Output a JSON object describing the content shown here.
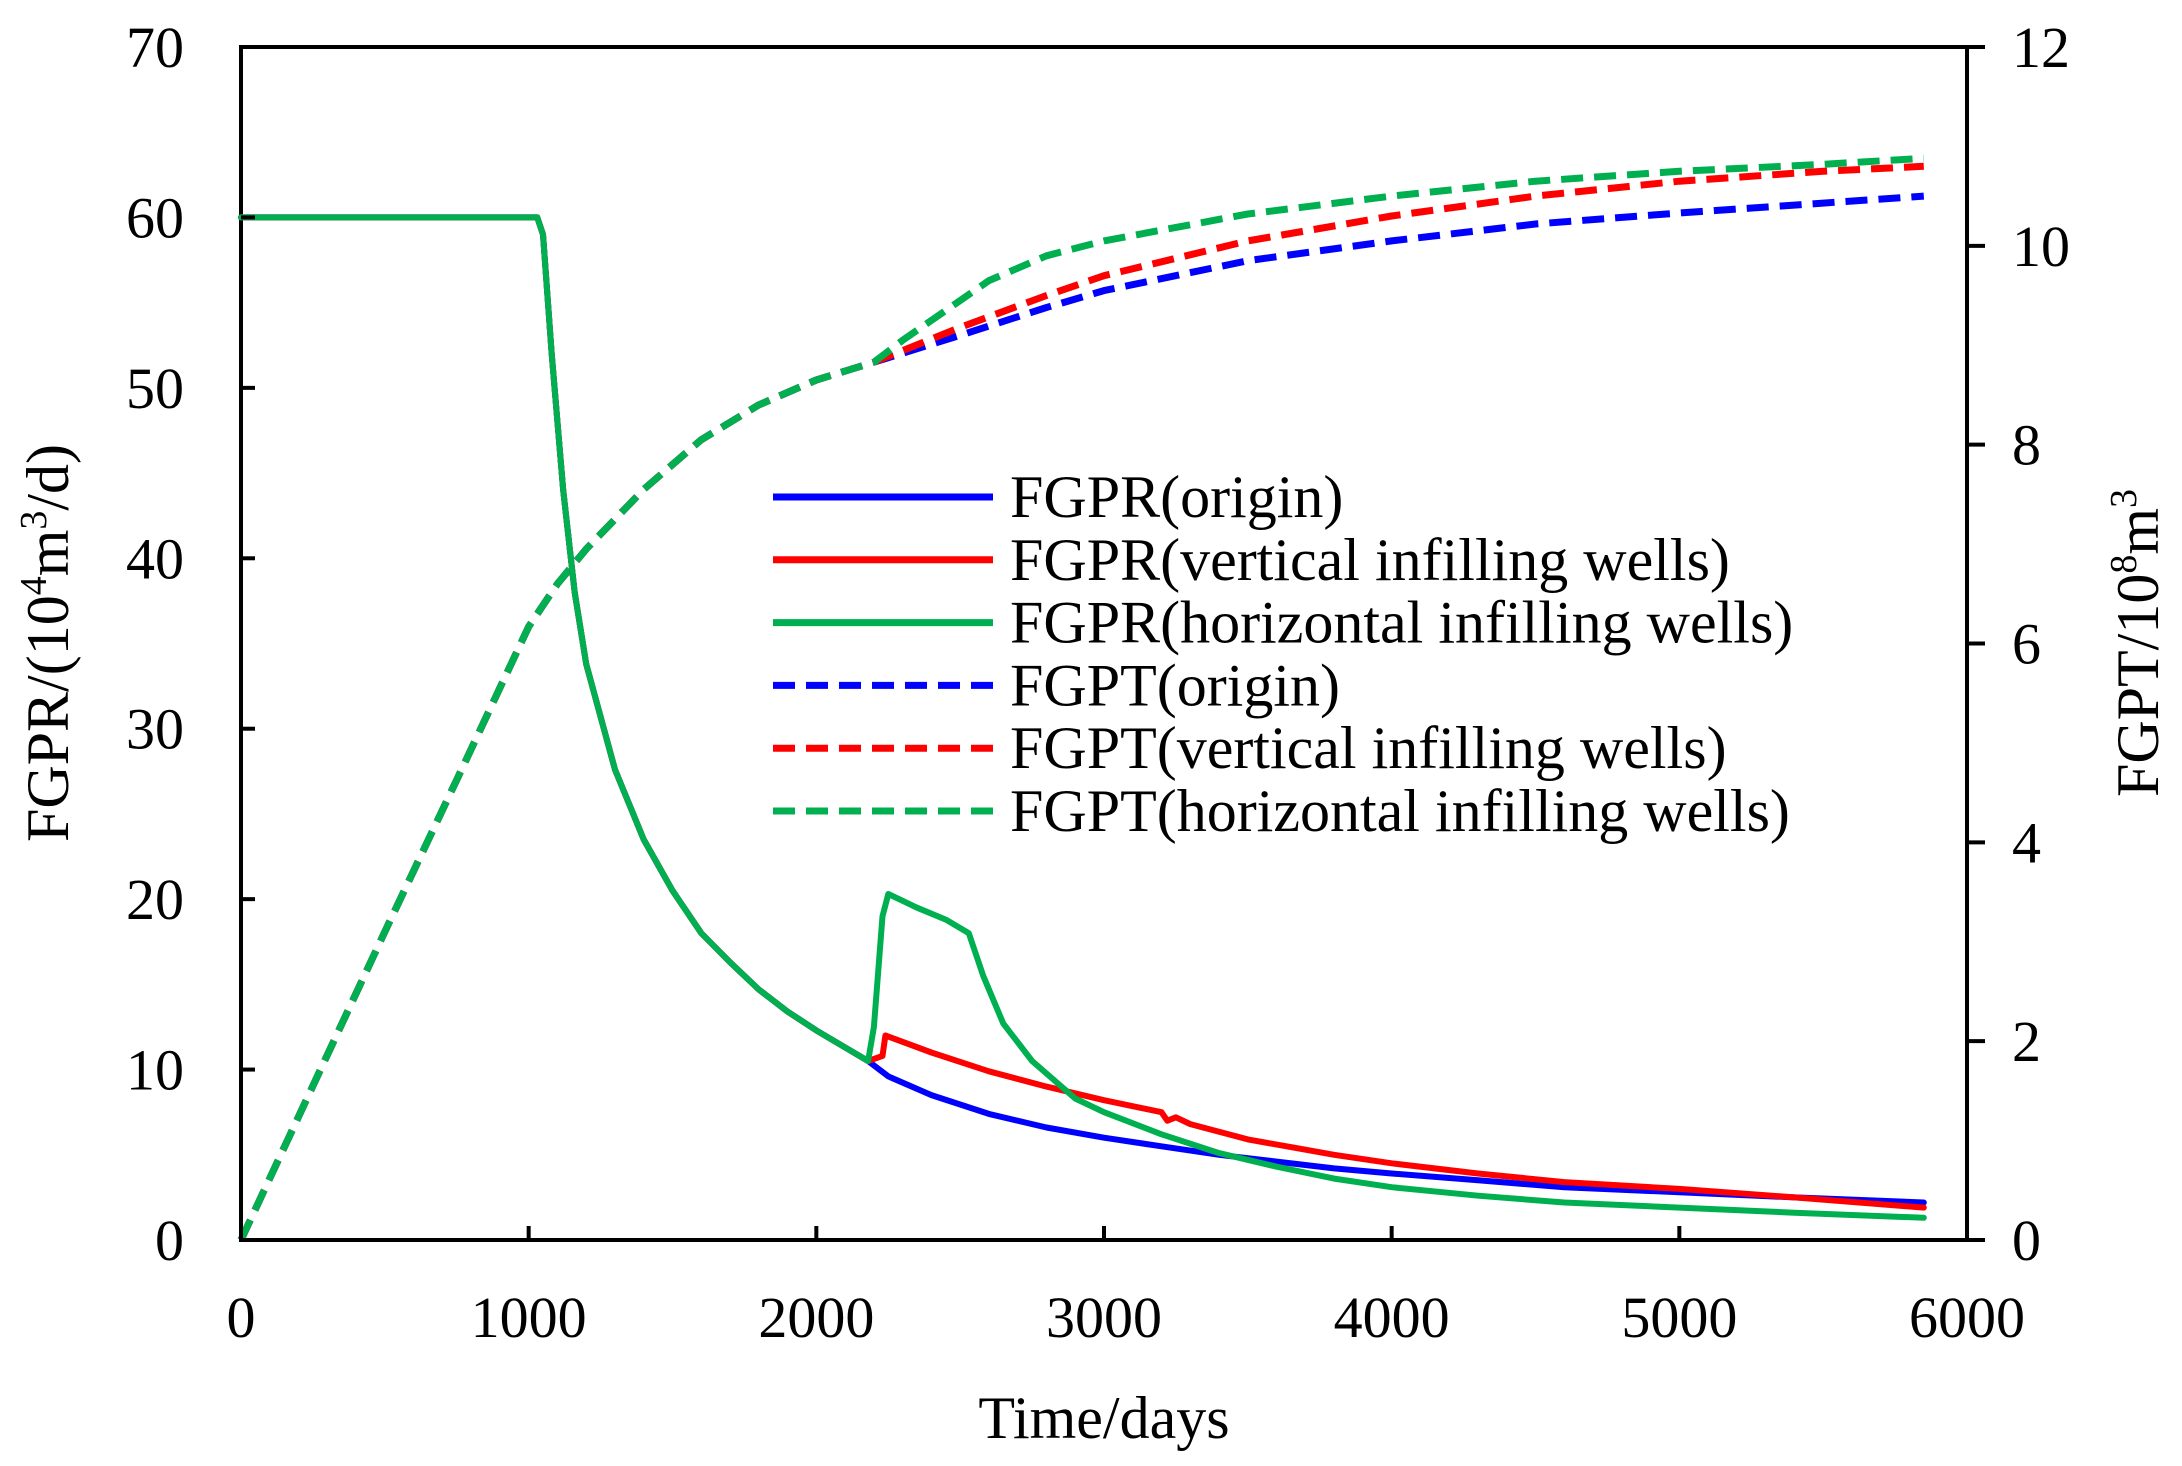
{
  "chart_data": {
    "type": "line",
    "title": "",
    "xlabel": "Time/days",
    "ylabel_left_parts": [
      "FGPR/(10",
      "4",
      "m",
      "3",
      "/d)"
    ],
    "ylabel_right_parts": [
      "FGPT/10",
      "8",
      "m",
      "3"
    ],
    "xlim": [
      0,
      6000
    ],
    "ylim_left": [
      0,
      70
    ],
    "ylim_right": [
      0,
      12
    ],
    "xticks": [
      "0",
      "1000",
      "2000",
      "3000",
      "4000",
      "5000",
      "6000"
    ],
    "yticks_left": [
      "0",
      "10",
      "20",
      "30",
      "40",
      "50",
      "60",
      "70"
    ],
    "yticks_right": [
      "0",
      "2",
      "4",
      "6",
      "8",
      "10",
      "12"
    ],
    "grid": false,
    "legend_position": "center-right",
    "series": [
      {
        "name": "FGPR(origin)",
        "axis": "left",
        "color": "#0000ff",
        "dashed": false,
        "points": [
          [
            0,
            60
          ],
          [
            1030,
            60
          ],
          [
            1050,
            59
          ],
          [
            1080,
            52
          ],
          [
            1120,
            44
          ],
          [
            1160,
            38
          ],
          [
            1200,
            33.8
          ],
          [
            1300,
            27.6
          ],
          [
            1400,
            23.5
          ],
          [
            1500,
            20.5
          ],
          [
            1600,
            18
          ],
          [
            1700,
            16.3
          ],
          [
            1800,
            14.7
          ],
          [
            1900,
            13.4
          ],
          [
            2000,
            12.3
          ],
          [
            2100,
            11.3
          ],
          [
            2180,
            10.5
          ],
          [
            2250,
            9.6
          ],
          [
            2400,
            8.5
          ],
          [
            2600,
            7.4
          ],
          [
            2800,
            6.6
          ],
          [
            3000,
            6
          ],
          [
            3200,
            5.5
          ],
          [
            3400,
            5
          ],
          [
            3600,
            4.6
          ],
          [
            3800,
            4.2
          ],
          [
            4000,
            3.9
          ],
          [
            4300,
            3.5
          ],
          [
            4600,
            3.1
          ],
          [
            5000,
            2.8
          ],
          [
            5400,
            2.5
          ],
          [
            5850,
            2.2
          ]
        ]
      },
      {
        "name": "FGPR(vertical infilling wells)",
        "axis": "left",
        "color": "#ff0000",
        "dashed": false,
        "points": [
          [
            0,
            60
          ],
          [
            1030,
            60
          ],
          [
            1050,
            59
          ],
          [
            1080,
            52
          ],
          [
            1120,
            44
          ],
          [
            1160,
            38
          ],
          [
            1200,
            33.8
          ],
          [
            1300,
            27.6
          ],
          [
            1400,
            23.5
          ],
          [
            1500,
            20.5
          ],
          [
            1600,
            18
          ],
          [
            1700,
            16.3
          ],
          [
            1800,
            14.7
          ],
          [
            1900,
            13.4
          ],
          [
            2000,
            12.3
          ],
          [
            2100,
            11.3
          ],
          [
            2180,
            10.5
          ],
          [
            2230,
            10.8
          ],
          [
            2240,
            12
          ],
          [
            2400,
            11
          ],
          [
            2600,
            9.9
          ],
          [
            2800,
            9
          ],
          [
            3000,
            8.2
          ],
          [
            3200,
            7.5
          ],
          [
            3220,
            7
          ],
          [
            3250,
            7.2
          ],
          [
            3300,
            6.8
          ],
          [
            3500,
            5.9
          ],
          [
            3800,
            5
          ],
          [
            4000,
            4.5
          ],
          [
            4300,
            3.9
          ],
          [
            4600,
            3.4
          ],
          [
            5000,
            3
          ],
          [
            5400,
            2.5
          ],
          [
            5850,
            1.9
          ]
        ]
      },
      {
        "name": "FGPR(horizontal infilling wells)",
        "axis": "left",
        "color": "#00b050",
        "dashed": false,
        "points": [
          [
            0,
            60
          ],
          [
            1030,
            60
          ],
          [
            1050,
            59
          ],
          [
            1080,
            52
          ],
          [
            1120,
            44
          ],
          [
            1160,
            38
          ],
          [
            1200,
            33.8
          ],
          [
            1300,
            27.6
          ],
          [
            1400,
            23.5
          ],
          [
            1500,
            20.5
          ],
          [
            1600,
            18
          ],
          [
            1700,
            16.3
          ],
          [
            1800,
            14.7
          ],
          [
            1900,
            13.4
          ],
          [
            2000,
            12.3
          ],
          [
            2100,
            11.3
          ],
          [
            2180,
            10.5
          ],
          [
            2200,
            12.5
          ],
          [
            2230,
            19
          ],
          [
            2250,
            20.3
          ],
          [
            2350,
            19.5
          ],
          [
            2450,
            18.8
          ],
          [
            2530,
            18
          ],
          [
            2580,
            15.5
          ],
          [
            2650,
            12.7
          ],
          [
            2750,
            10.5
          ],
          [
            2900,
            8.3
          ],
          [
            3000,
            7.5
          ],
          [
            3200,
            6.2
          ],
          [
            3400,
            5.1
          ],
          [
            3600,
            4.3
          ],
          [
            3800,
            3.6
          ],
          [
            4000,
            3.1
          ],
          [
            4300,
            2.6
          ],
          [
            4600,
            2.2
          ],
          [
            5000,
            1.9
          ],
          [
            5400,
            1.6
          ],
          [
            5850,
            1.3
          ]
        ]
      },
      {
        "name": "FGPT(origin)",
        "axis": "right",
        "color": "#0000ff",
        "dashed": true,
        "points": [
          [
            0,
            0
          ],
          [
            250,
            1.55
          ],
          [
            500,
            3.1
          ],
          [
            750,
            4.63
          ],
          [
            1000,
            6.17
          ],
          [
            1100,
            6.6
          ],
          [
            1200,
            6.95
          ],
          [
            1400,
            7.55
          ],
          [
            1600,
            8.05
          ],
          [
            1800,
            8.4
          ],
          [
            2000,
            8.65
          ],
          [
            2200,
            8.83
          ],
          [
            2500,
            9.1
          ],
          [
            2800,
            9.38
          ],
          [
            3000,
            9.55
          ],
          [
            3500,
            9.85
          ],
          [
            4000,
            10.05
          ],
          [
            4500,
            10.22
          ],
          [
            5000,
            10.33
          ],
          [
            5500,
            10.43
          ],
          [
            5850,
            10.5
          ]
        ]
      },
      {
        "name": "FGPT(vertical infilling wells)",
        "axis": "right",
        "color": "#ff0000",
        "dashed": true,
        "points": [
          [
            0,
            0
          ],
          [
            250,
            1.55
          ],
          [
            500,
            3.1
          ],
          [
            750,
            4.63
          ],
          [
            1000,
            6.17
          ],
          [
            1100,
            6.6
          ],
          [
            1200,
            6.95
          ],
          [
            1400,
            7.55
          ],
          [
            1600,
            8.05
          ],
          [
            1800,
            8.4
          ],
          [
            2000,
            8.65
          ],
          [
            2200,
            8.83
          ],
          [
            2500,
            9.18
          ],
          [
            2800,
            9.5
          ],
          [
            3000,
            9.7
          ],
          [
            3500,
            10.05
          ],
          [
            4000,
            10.3
          ],
          [
            4500,
            10.5
          ],
          [
            5000,
            10.65
          ],
          [
            5500,
            10.75
          ],
          [
            5850,
            10.8
          ]
        ]
      },
      {
        "name": "FGPT(horizontal infilling wells)",
        "axis": "right",
        "color": "#00b050",
        "dashed": true,
        "points": [
          [
            0,
            0
          ],
          [
            250,
            1.55
          ],
          [
            500,
            3.1
          ],
          [
            750,
            4.63
          ],
          [
            1000,
            6.17
          ],
          [
            1100,
            6.6
          ],
          [
            1200,
            6.95
          ],
          [
            1400,
            7.55
          ],
          [
            1600,
            8.05
          ],
          [
            1800,
            8.4
          ],
          [
            2000,
            8.65
          ],
          [
            2200,
            8.83
          ],
          [
            2300,
            9.05
          ],
          [
            2450,
            9.35
          ],
          [
            2600,
            9.65
          ],
          [
            2800,
            9.9
          ],
          [
            3000,
            10.05
          ],
          [
            3500,
            10.32
          ],
          [
            4000,
            10.5
          ],
          [
            4500,
            10.65
          ],
          [
            5000,
            10.75
          ],
          [
            5500,
            10.82
          ],
          [
            5850,
            10.88
          ]
        ]
      }
    ]
  }
}
